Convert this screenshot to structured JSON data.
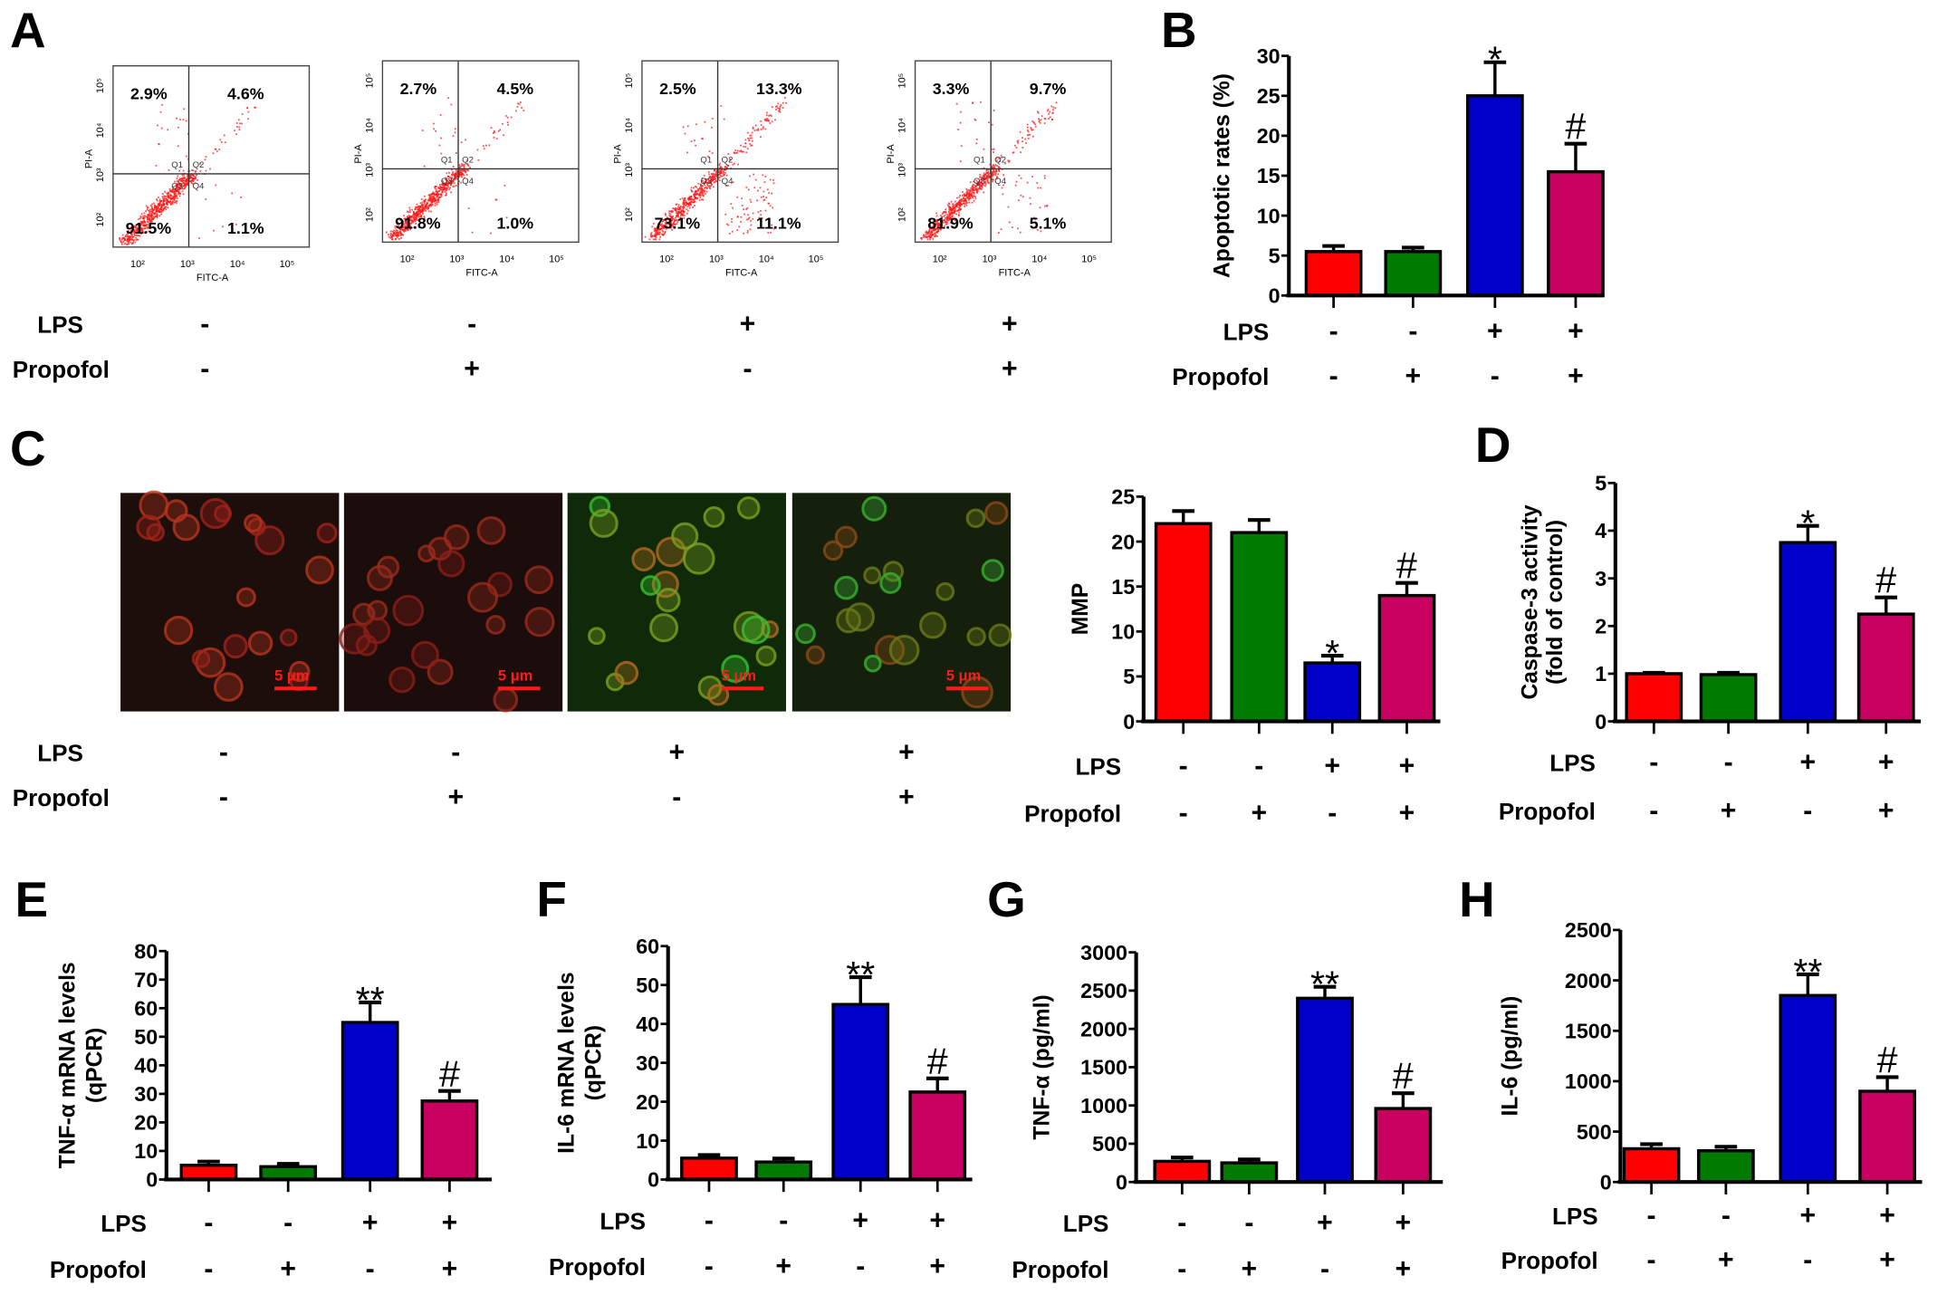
{
  "figure": {
    "panel_letters": [
      "A",
      "B",
      "C",
      "D",
      "E",
      "F",
      "G",
      "H"
    ],
    "condition_labels": {
      "lps": "LPS",
      "propofol": "Propofol"
    },
    "groups": [
      {
        "lps": "-",
        "propofol": "-"
      },
      {
        "lps": "-",
        "propofol": "+"
      },
      {
        "lps": "+",
        "propofol": "-"
      },
      {
        "lps": "+",
        "propofol": "+"
      }
    ],
    "bar_colors": [
      "#ff0000",
      "#007a00",
      "#0000c8",
      "#c8005f"
    ],
    "flow": {
      "x_label": "FITC-A",
      "y_label": "PI-A",
      "tick_labels": [
        "10²",
        "10³",
        "10⁴",
        "10⁵"
      ],
      "quadrant_names": [
        "Q1",
        "Q2",
        "Q3",
        "Q4"
      ],
      "dot_color": "#ff1a1a",
      "plots": [
        {
          "q1": "2.9%",
          "q2": "4.6%",
          "q3": "91.5%",
          "q4": "1.1%"
        },
        {
          "q1": "2.7%",
          "q2": "4.5%",
          "q3": "91.8%",
          "q4": "1.0%"
        },
        {
          "q1": "2.5%",
          "q2": "13.3%",
          "q3": "73.1%",
          "q4": "11.1%"
        },
        {
          "q1": "3.3%",
          "q2": "9.7%",
          "q3": "81.9%",
          "q4": "5.1%"
        }
      ]
    },
    "microscopy": {
      "scale_bar_label": "5 μm",
      "scale_bar_color": "#ff1a1a"
    }
  },
  "chart_data": [
    {
      "panel": "B",
      "type": "bar",
      "ylabel": [
        "Apoptotic rates (%)"
      ],
      "ylim": [
        0,
        30
      ],
      "yticks": [
        0,
        5,
        10,
        15,
        20,
        25,
        30
      ],
      "values": [
        5.5,
        5.5,
        25,
        15.5
      ],
      "errors": [
        0.7,
        0.5,
        4.2,
        3.5
      ],
      "annotations": [
        "",
        "",
        "*",
        "#"
      ]
    },
    {
      "panel": "C",
      "type": "bar",
      "ylabel": [
        "MMP"
      ],
      "ylim": [
        0,
        25
      ],
      "yticks": [
        0,
        5,
        10,
        15,
        20,
        25
      ],
      "values": [
        22,
        21,
        6.5,
        14
      ],
      "errors": [
        1.4,
        1.4,
        0.8,
        1.4
      ],
      "annotations": [
        "",
        "",
        "*",
        "#"
      ]
    },
    {
      "panel": "D",
      "type": "bar",
      "ylabel": [
        "Caspase-3 activity",
        "(fold of control)"
      ],
      "ylim": [
        0,
        5
      ],
      "yticks": [
        0,
        1,
        2,
        3,
        4,
        5
      ],
      "values": [
        1.0,
        0.98,
        3.75,
        2.25
      ],
      "errors": [
        0.02,
        0.04,
        0.35,
        0.35
      ],
      "annotations": [
        "",
        "",
        "*",
        "#"
      ]
    },
    {
      "panel": "E",
      "type": "bar",
      "ylabel": [
        "TNF-α mRNA levels",
        "(qPCR)"
      ],
      "ylim": [
        0,
        80
      ],
      "yticks": [
        0,
        10,
        20,
        30,
        40,
        50,
        60,
        70,
        80
      ],
      "values": [
        5,
        4.5,
        55,
        27.5
      ],
      "errors": [
        1.3,
        1.0,
        7,
        3.5
      ],
      "annotations": [
        "",
        "",
        "**",
        "#"
      ]
    },
    {
      "panel": "F",
      "type": "bar",
      "ylabel": [
        "IL-6 mRNA levels",
        "(qPCR)"
      ],
      "ylim": [
        0,
        60
      ],
      "yticks": [
        0,
        10,
        20,
        30,
        40,
        50,
        60
      ],
      "values": [
        5.5,
        4.5,
        45,
        22.5
      ],
      "errors": [
        0.8,
        0.9,
        7,
        3.5
      ],
      "annotations": [
        "",
        "",
        "**",
        "#"
      ]
    },
    {
      "panel": "G",
      "type": "bar",
      "ylabel": [
        "TNF-α (pg/ml)"
      ],
      "ylim": [
        0,
        3000
      ],
      "yticks": [
        0,
        500,
        1000,
        1500,
        2000,
        2500,
        3000
      ],
      "values": [
        270,
        250,
        2400,
        960
      ],
      "errors": [
        50,
        45,
        150,
        200
      ],
      "annotations": [
        "",
        "",
        "**",
        "#"
      ]
    },
    {
      "panel": "H",
      "type": "bar",
      "ylabel": [
        "IL-6 (pg/ml)"
      ],
      "ylim": [
        0,
        2500
      ],
      "yticks": [
        0,
        500,
        1000,
        1500,
        2000,
        2500
      ],
      "values": [
        330,
        310,
        1850,
        900
      ],
      "errors": [
        45,
        40,
        210,
        140
      ],
      "annotations": [
        "",
        "",
        "**",
        "#"
      ]
    }
  ]
}
